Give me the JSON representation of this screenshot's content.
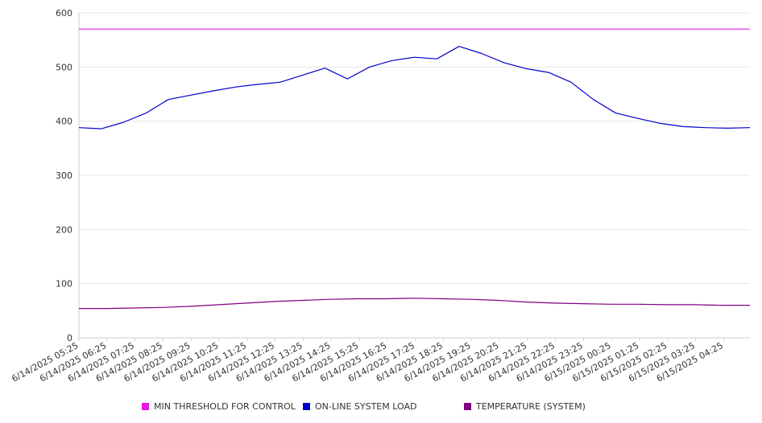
{
  "chart_data": {
    "type": "line",
    "y_ticks": [
      0,
      100,
      200,
      300,
      400,
      500,
      600
    ],
    "ylim": [
      0,
      600
    ],
    "x_tick_labels": [
      "6/14/2025 05:25",
      "6/14/2025 06:25",
      "6/14/2025 07:25",
      "6/14/2025 08:25",
      "6/14/2025 09:25",
      "6/14/2025 10:25",
      "6/14/2025 11:25",
      "6/14/2025 12:25",
      "6/14/2025 13:25",
      "6/14/2025 14:25",
      "6/14/2025 15:25",
      "6/14/2025 16:25",
      "6/14/2025 17:25",
      "6/14/2025 18:25",
      "6/14/2025 19:25",
      "6/14/2025 20:25",
      "6/14/2025 21:25",
      "6/14/2025 22:25",
      "6/14/2025 23:25",
      "6/15/2025 00:25",
      "6/15/2025 01:25",
      "6/15/2025 02:25",
      "6/15/2025 03:25",
      "6/15/2025 04:25"
    ],
    "grid": true,
    "legend_position": "bottom",
    "series": [
      {
        "name": "MIN THRESHOLD FOR CONTROL",
        "color": "#e619e6",
        "values": [
          570,
          570,
          570,
          570,
          570,
          570,
          570,
          570,
          570,
          570,
          570,
          570,
          570,
          570,
          570,
          570,
          570,
          570,
          570,
          570,
          570,
          570,
          570,
          570,
          570
        ]
      },
      {
        "name": "ON-LINE SYSTEM LOAD",
        "color": "#0000cc",
        "values": [
          388,
          386,
          398,
          415,
          440,
          448,
          456,
          463,
          468,
          472,
          485,
          498,
          478,
          500,
          512,
          518,
          515,
          538,
          525,
          508,
          497,
          490,
          472,
          440,
          415,
          405,
          396,
          390,
          388,
          387,
          388
        ]
      },
      {
        "name": "TEMPERATURE (SYSTEM)",
        "color": "#800080",
        "values": [
          54,
          54,
          55,
          56,
          58,
          61,
          64,
          67,
          69,
          71,
          72,
          72,
          73,
          72,
          71,
          69,
          66,
          64,
          63,
          62,
          62,
          61,
          61,
          60,
          60
        ]
      }
    ]
  }
}
